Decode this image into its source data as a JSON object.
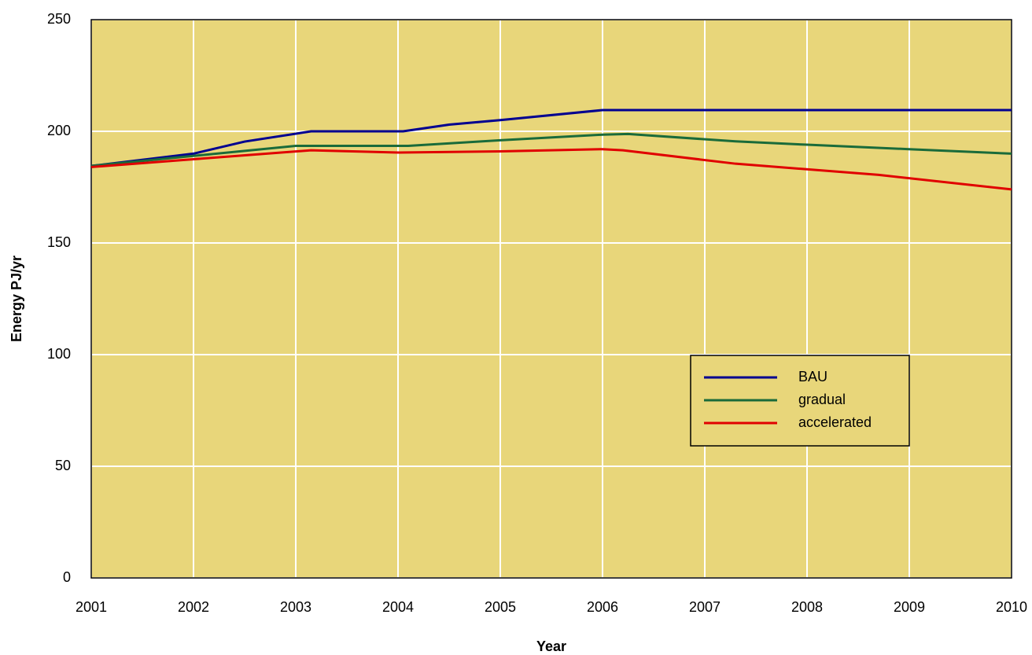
{
  "chart_data": {
    "type": "line",
    "x_label": "Year",
    "y_label": "Energy PJ/yr",
    "xlim": [
      2001,
      2010
    ],
    "xticks": [
      2001,
      2002,
      2003,
      2004,
      2005,
      2006,
      2007,
      2008,
      2009,
      2010
    ],
    "ylim": [
      0,
      250
    ],
    "yticks": [
      0,
      50,
      100,
      150,
      200,
      250
    ],
    "grid": true,
    "background": "#e8d67a",
    "legend": "lower right",
    "series": [
      {
        "name": "BAU",
        "color": "#000090",
        "x": [
          2001,
          2002,
          2002.5,
          2003.15,
          2004.05,
          2004.5,
          2005,
          2006,
          2007,
          2008,
          2009,
          2010
        ],
        "values": [
          184.5,
          190,
          195.4,
          200,
          200,
          203,
          205,
          209.5,
          209.5,
          209.5,
          209.5,
          209.5
        ]
      },
      {
        "name": "gradual",
        "color": "#1a6b3a",
        "x": [
          2001,
          2002,
          2003,
          2004.1,
          2005,
          2006,
          2006.25,
          2007.3,
          2008,
          2009,
          2010
        ],
        "values": [
          184.5,
          189,
          193.5,
          193.5,
          196,
          198.5,
          198.8,
          195.5,
          194,
          192,
          190
        ]
      },
      {
        "name": "accelerated",
        "color": "#e00000",
        "x": [
          2001,
          2002,
          2003.15,
          2004,
          2005,
          2006,
          2006.2,
          2007.3,
          2008.7,
          2010
        ],
        "values": [
          184,
          187.5,
          191.5,
          190.5,
          191,
          192,
          191.5,
          185.5,
          180.5,
          174
        ]
      }
    ]
  }
}
